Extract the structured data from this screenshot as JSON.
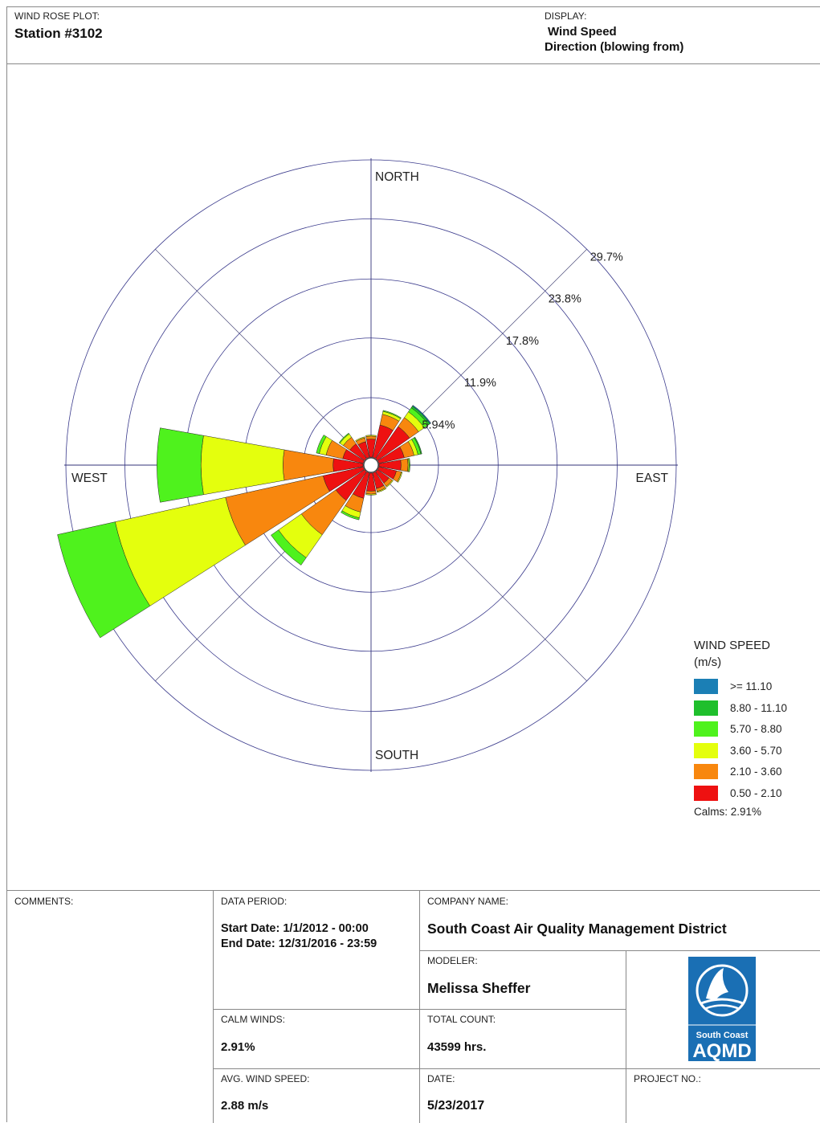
{
  "header": {
    "plot_label": "WIND ROSE PLOT:",
    "station": "Station #3102",
    "display_label": "DISPLAY:",
    "display_line1": "Wind Speed",
    "display_line2": "Direction (blowing from)"
  },
  "chart_data": {
    "type": "wind-rose",
    "compass_labels": {
      "north": "NORTH",
      "south": "SOUTH",
      "east": "EAST",
      "west": "WEST"
    },
    "ring_labels": [
      "5.94%",
      "11.9%",
      "17.8%",
      "23.8%",
      "29.7%"
    ],
    "rings": [
      5.94,
      11.9,
      17.8,
      23.8,
      29.7
    ],
    "directions": [
      "N",
      "NNE",
      "NE",
      "ENE",
      "E",
      "ESE",
      "SE",
      "SSE",
      "S",
      "SSW",
      "SW",
      "WSW",
      "W",
      "WNW",
      "NW",
      "NNW"
    ],
    "speed_bins": [
      "0.50 - 2.10",
      "2.10 - 3.60",
      "3.60 - 5.70",
      "5.70 - 8.80",
      "8.80 - 11.10",
      ">= 11.10"
    ],
    "bin_colors": [
      "#ee1111",
      "#f8870e",
      "#e4ff0d",
      "#4ff21d",
      "#1fbf2c",
      "#1b7fb5"
    ],
    "cumulative_percent_by_direction": {
      "N": [
        1.8,
        2.1,
        2.2,
        2.2,
        2.2,
        2.2
      ],
      "NNE": [
        3.3,
        4.4,
        4.7,
        4.8,
        4.8,
        4.8
      ],
      "NE": [
        3.9,
        5.0,
        5.7,
        6.2,
        6.4,
        6.5
      ],
      "ENE": [
        2.6,
        3.6,
        4.0,
        4.3,
        4.4,
        4.4
      ],
      "E": [
        2.2,
        2.9,
        3.0,
        3.1,
        3.1,
        3.1
      ],
      "ESE": [
        1.8,
        2.3,
        2.4,
        2.4,
        2.4,
        2.4
      ],
      "SE": [
        1.4,
        1.8,
        1.9,
        1.9,
        1.9,
        1.9
      ],
      "SSE": [
        1.6,
        1.9,
        2.0,
        2.0,
        2.0,
        2.0
      ],
      "S": [
        1.8,
        2.1,
        2.2,
        2.2,
        2.2,
        2.2
      ],
      "SSW": [
        2.6,
        4.0,
        4.6,
        4.8,
        4.8,
        4.8
      ],
      "SW": [
        3.5,
        7.7,
        10.5,
        11.4,
        11.4,
        11.4
      ],
      "WSW": [
        4.1,
        14.1,
        25.4,
        31.3,
        31.3,
        31.3
      ],
      "W": [
        3.0,
        8.0,
        16.2,
        20.6,
        20.6,
        20.6
      ],
      "WNW": [
        2.1,
        3.8,
        4.5,
        4.8,
        4.8,
        4.8
      ],
      "NW": [
        1.8,
        2.6,
        3.0,
        3.1,
        3.1,
        3.1
      ],
      "NNW": [
        1.6,
        2.0,
        2.1,
        2.1,
        2.1,
        2.1
      ]
    }
  },
  "legend": {
    "title_line1": "WIND SPEED",
    "title_line2": "(m/s)",
    "items": [
      {
        "label": ">= 11.10",
        "color": "#1b7fb5"
      },
      {
        "label": "8.80 - 11.10",
        "color": "#1fbf2c"
      },
      {
        "label": "5.70 - 8.80",
        "color": "#4ff21d"
      },
      {
        "label": "3.60 - 5.70",
        "color": "#e4ff0d"
      },
      {
        "label": "2.10 - 3.60",
        "color": "#f8870e"
      },
      {
        "label": "0.50 - 2.10",
        "color": "#ee1111"
      }
    ],
    "calms": "Calms: 2.91%"
  },
  "footer": {
    "comments_label": "COMMENTS:",
    "data_period_label": "DATA PERIOD:",
    "start_date": "Start Date: 1/1/2012 - 00:00",
    "end_date": "End Date: 12/31/2016 - 23:59",
    "company_label": "COMPANY NAME:",
    "company": "South Coast Air Quality Management District",
    "modeler_label": "MODELER:",
    "modeler": "Melissa Sheffer",
    "calm_label": "CALM WINDS:",
    "calm": "2.91%",
    "total_label": "TOTAL COUNT:",
    "total": "43599 hrs.",
    "avg_label": "AVG. WIND SPEED:",
    "avg": "2.88 m/s",
    "date_label": "DATE:",
    "date": "5/23/2017",
    "project_label": "PROJECT NO.:",
    "logo_text1": "South Coast",
    "logo_text2": "AQMD",
    "logo_color": "#1a6fb4"
  }
}
